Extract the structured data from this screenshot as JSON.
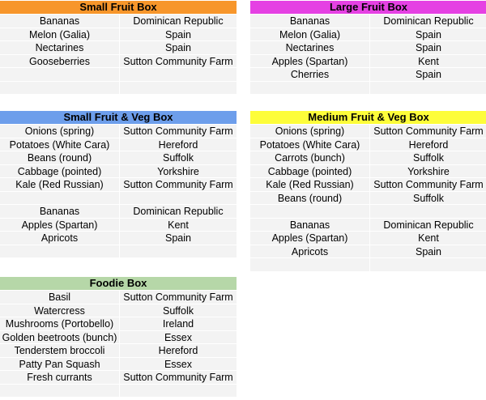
{
  "boxes": [
    {
      "title": "Small Fruit Box",
      "color": "#f7962b",
      "rows": [
        [
          "Bananas",
          "Dominican Republic"
        ],
        [
          "Melon (Galia)",
          "Spain"
        ],
        [
          "Nectarines",
          "Spain"
        ],
        [
          "Gooseberries",
          "Sutton Community Farm"
        ],
        [
          "",
          ""
        ],
        [
          "",
          ""
        ]
      ]
    },
    {
      "title": "Large Fruit Box",
      "color": "#e541e3",
      "rows": [
        [
          "Bananas",
          "Dominican Republic"
        ],
        [
          "Melon (Galia)",
          "Spain"
        ],
        [
          "Nectarines",
          "Spain"
        ],
        [
          "Apples (Spartan)",
          "Kent"
        ],
        [
          "Cherries",
          "Spain"
        ],
        [
          "",
          ""
        ]
      ]
    },
    {
      "title": "Small Fruit & Veg Box",
      "color": "#6d9eeb",
      "rows": [
        [
          "Onions (spring)",
          "Sutton Community Farm"
        ],
        [
          "Potatoes (White Cara)",
          "Hereford"
        ],
        [
          "Beans (round)",
          "Suffolk"
        ],
        [
          "Cabbage (pointed)",
          "Yorkshire"
        ],
        [
          "Kale (Red Russian)",
          "Sutton Community Farm"
        ],
        [
          "",
          ""
        ],
        [
          "Bananas",
          "Dominican Republic"
        ],
        [
          "Apples (Spartan)",
          "Kent"
        ],
        [
          "Apricots",
          "Spain"
        ],
        [
          "",
          ""
        ]
      ]
    },
    {
      "title": "Medium Fruit & Veg Box",
      "color": "#fdfd3a",
      "rows": [
        [
          "Onions (spring)",
          "Sutton Community Farm"
        ],
        [
          "Potatoes (White Cara)",
          "Hereford"
        ],
        [
          "Carrots (bunch)",
          "Suffolk"
        ],
        [
          "Cabbage (pointed)",
          "Yorkshire"
        ],
        [
          "Kale (Red Russian)",
          "Sutton Community Farm"
        ],
        [
          "Beans (round)",
          "Suffolk"
        ],
        [
          "",
          ""
        ],
        [
          "Bananas",
          "Dominican Republic"
        ],
        [
          "Apples (Spartan)",
          "Kent"
        ],
        [
          "Apricots",
          "Spain"
        ],
        [
          "",
          ""
        ]
      ]
    },
    {
      "title": "Foodie Box",
      "color": "#b6d7a8",
      "rows": [
        [
          "Basil",
          "Sutton Community Farm"
        ],
        [
          "Watercress",
          "Suffolk"
        ],
        [
          "Mushrooms (Portobello)",
          "Ireland"
        ],
        [
          "Golden beetroots (bunch)",
          "Essex"
        ],
        [
          "Tenderstem broccoli",
          "Hereford"
        ],
        [
          "Patty Pan Squash",
          "Essex"
        ],
        [
          "Fresh currants",
          "Sutton Community Farm"
        ],
        [
          "",
          ""
        ]
      ]
    }
  ]
}
